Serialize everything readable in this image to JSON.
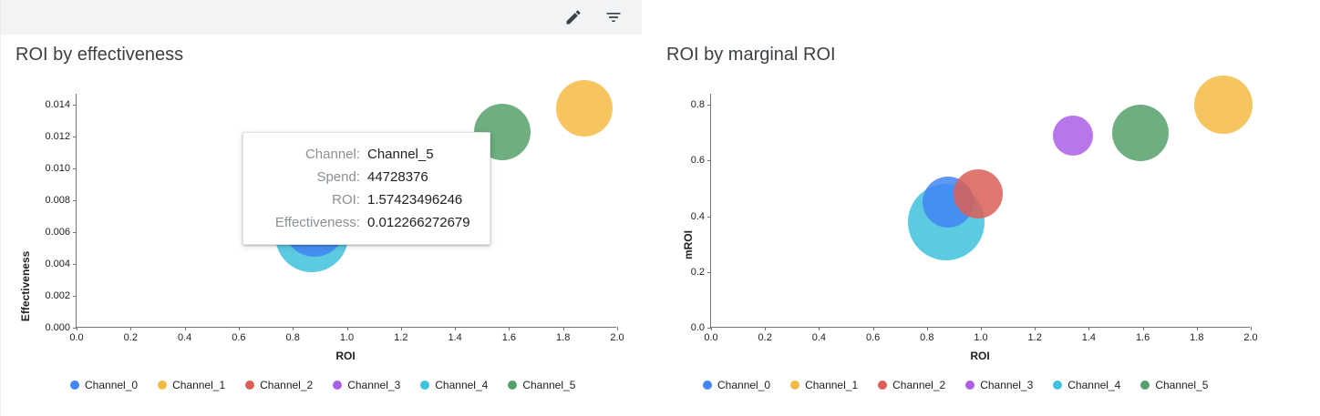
{
  "toolbar": {
    "buttons": [
      {
        "name": "edit-button",
        "icon": "edit-icon"
      },
      {
        "name": "filter-button",
        "icon": "filter-list-icon"
      }
    ]
  },
  "channels": [
    {
      "name": "Channel_0",
      "color": "#4285F4"
    },
    {
      "name": "Channel_1",
      "color": "#F4BB44"
    },
    {
      "name": "Channel_2",
      "color": "#DB5F56"
    },
    {
      "name": "Channel_3",
      "color": "#AB5EE6"
    },
    {
      "name": "Channel_4",
      "color": "#40C2DD"
    },
    {
      "name": "Channel_5",
      "color": "#55A06A"
    }
  ],
  "chart_data": [
    {
      "type": "scatter",
      "title": "ROI by effectiveness",
      "xlabel": "ROI",
      "ylabel": "Effectiveness",
      "xlim": [
        0.0,
        2.0
      ],
      "ylim": [
        0.0,
        0.014
      ],
      "x_ticks": [
        "0.0",
        "0.2",
        "0.4",
        "0.6",
        "0.8",
        "1.0",
        "1.2",
        "1.4",
        "1.6",
        "1.8",
        "2.0"
      ],
      "y_ticks": [
        "0.000",
        "0.002",
        "0.004",
        "0.006",
        "0.008",
        "0.010",
        "0.012",
        "0.014"
      ],
      "grid": false,
      "legend_position": "bottom",
      "points": [
        {
          "channel": "Channel_4",
          "x": 0.87,
          "y": 0.0058,
          "r": 40
        },
        {
          "channel": "Channel_0",
          "x": 0.88,
          "y": 0.0064,
          "r": 34
        },
        {
          "channel": "Channel_5",
          "x": 1.57423496246,
          "y": 0.012266272679,
          "r": 31
        },
        {
          "channel": "Channel_1",
          "x": 1.88,
          "y": 0.0138,
          "r": 31
        }
      ]
    },
    {
      "type": "scatter",
      "title": "ROI by marginal ROI",
      "xlabel": "ROI",
      "ylabel": "mROI",
      "xlim": [
        0.0,
        2.0
      ],
      "ylim": [
        0.0,
        0.8
      ],
      "x_ticks": [
        "0.0",
        "0.2",
        "0.4",
        "0.6",
        "0.8",
        "1.0",
        "1.2",
        "1.4",
        "1.6",
        "1.8",
        "2.0"
      ],
      "y_ticks": [
        "0.0",
        "0.2",
        "0.4",
        "0.6",
        "0.8"
      ],
      "grid": false,
      "legend_position": "bottom",
      "points": [
        {
          "channel": "Channel_4",
          "x": 0.87,
          "y": 0.38,
          "r": 42
        },
        {
          "channel": "Channel_0",
          "x": 0.88,
          "y": 0.45,
          "r": 28
        },
        {
          "channel": "Channel_2",
          "x": 0.99,
          "y": 0.48,
          "r": 27
        },
        {
          "channel": "Channel_3",
          "x": 1.34,
          "y": 0.69,
          "r": 22
        },
        {
          "channel": "Channel_5",
          "x": 1.59,
          "y": 0.7,
          "r": 31
        },
        {
          "channel": "Channel_1",
          "x": 1.9,
          "y": 0.8,
          "r": 32
        }
      ]
    }
  ],
  "tooltip": {
    "rows": [
      {
        "label": "Channel:",
        "value": "Channel_5"
      },
      {
        "label": "Spend:",
        "value": "44728376"
      },
      {
        "label": "ROI:",
        "value": "1.57423496246"
      },
      {
        "label": "Effectiveness:",
        "value": "0.012266272679"
      }
    ]
  }
}
